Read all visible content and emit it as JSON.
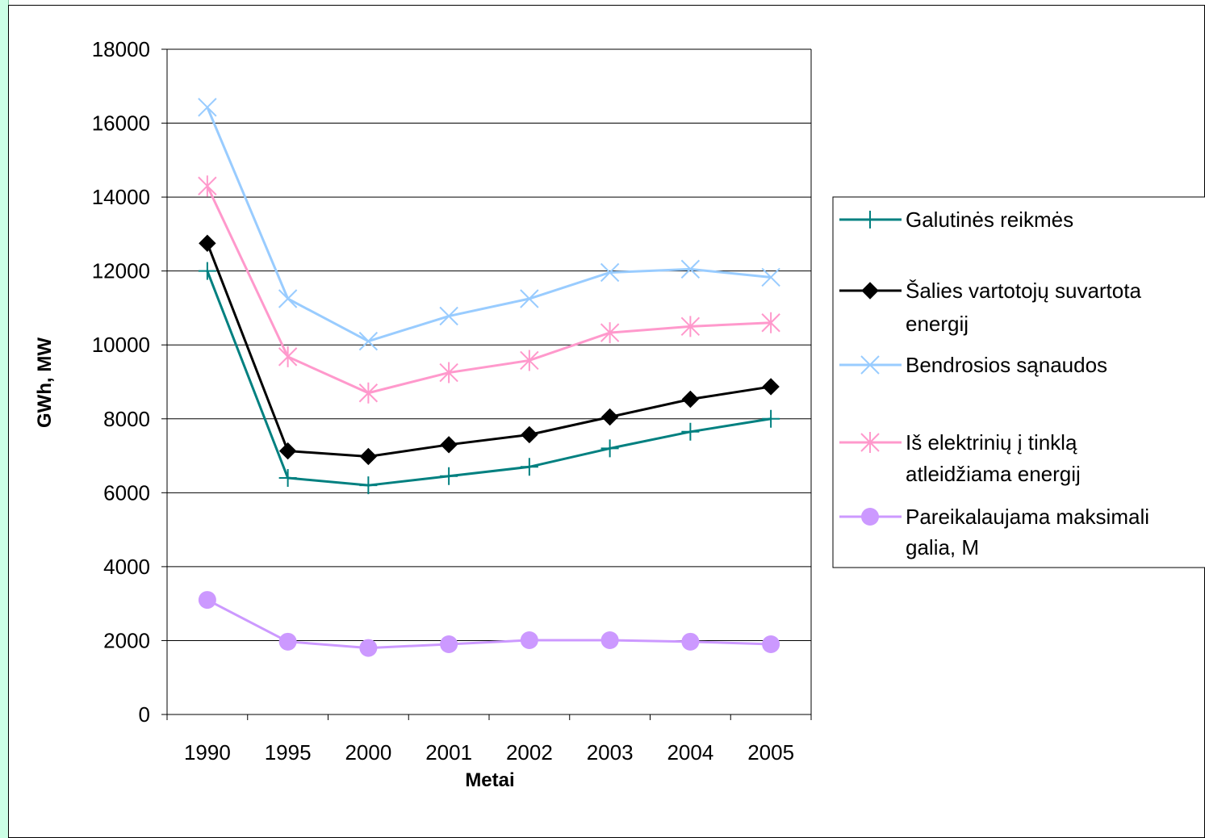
{
  "chart_data": {
    "type": "line",
    "title": "",
    "xlabel": "Metai",
    "ylabel": "GWh, MW",
    "categories": [
      "1990",
      "1995",
      "2000",
      "2001",
      "2002",
      "2003",
      "2004",
      "2005"
    ],
    "ylim": [
      0,
      18000
    ],
    "yticks": [
      0,
      2000,
      4000,
      6000,
      8000,
      10000,
      12000,
      14000,
      16000,
      18000
    ],
    "grid": "horizontal",
    "legend_position": "right",
    "series": [
      {
        "name": "Galutinės reikmės",
        "color": "#008080",
        "marker": "plus",
        "values": [
          12000,
          6400,
          6200,
          6450,
          6700,
          7200,
          7650,
          8000
        ]
      },
      {
        "name": "Šalies vartotojų suvartota energija",
        "color": "#000000",
        "marker": "diamond",
        "values": [
          12750,
          7130,
          6980,
          7300,
          7570,
          8050,
          8530,
          8870
        ]
      },
      {
        "name": "Bendrosios sąnaudos",
        "color": "#99ccff",
        "marker": "x",
        "values": [
          16430,
          11250,
          10100,
          10780,
          11250,
          11960,
          12050,
          11830
        ]
      },
      {
        "name": "Iš elektrinių į tinklą atleidžiama energija",
        "color": "#ff99cc",
        "marker": "asterisk",
        "values": [
          14300,
          9680,
          8700,
          9250,
          9580,
          10330,
          10500,
          10600
        ]
      },
      {
        "name": "Pareikalaujama maksimali galia, MW",
        "color": "#cc99ff",
        "marker": "circle",
        "values": [
          3100,
          1970,
          1800,
          1900,
          2010,
          2010,
          1970,
          1900
        ]
      }
    ]
  }
}
